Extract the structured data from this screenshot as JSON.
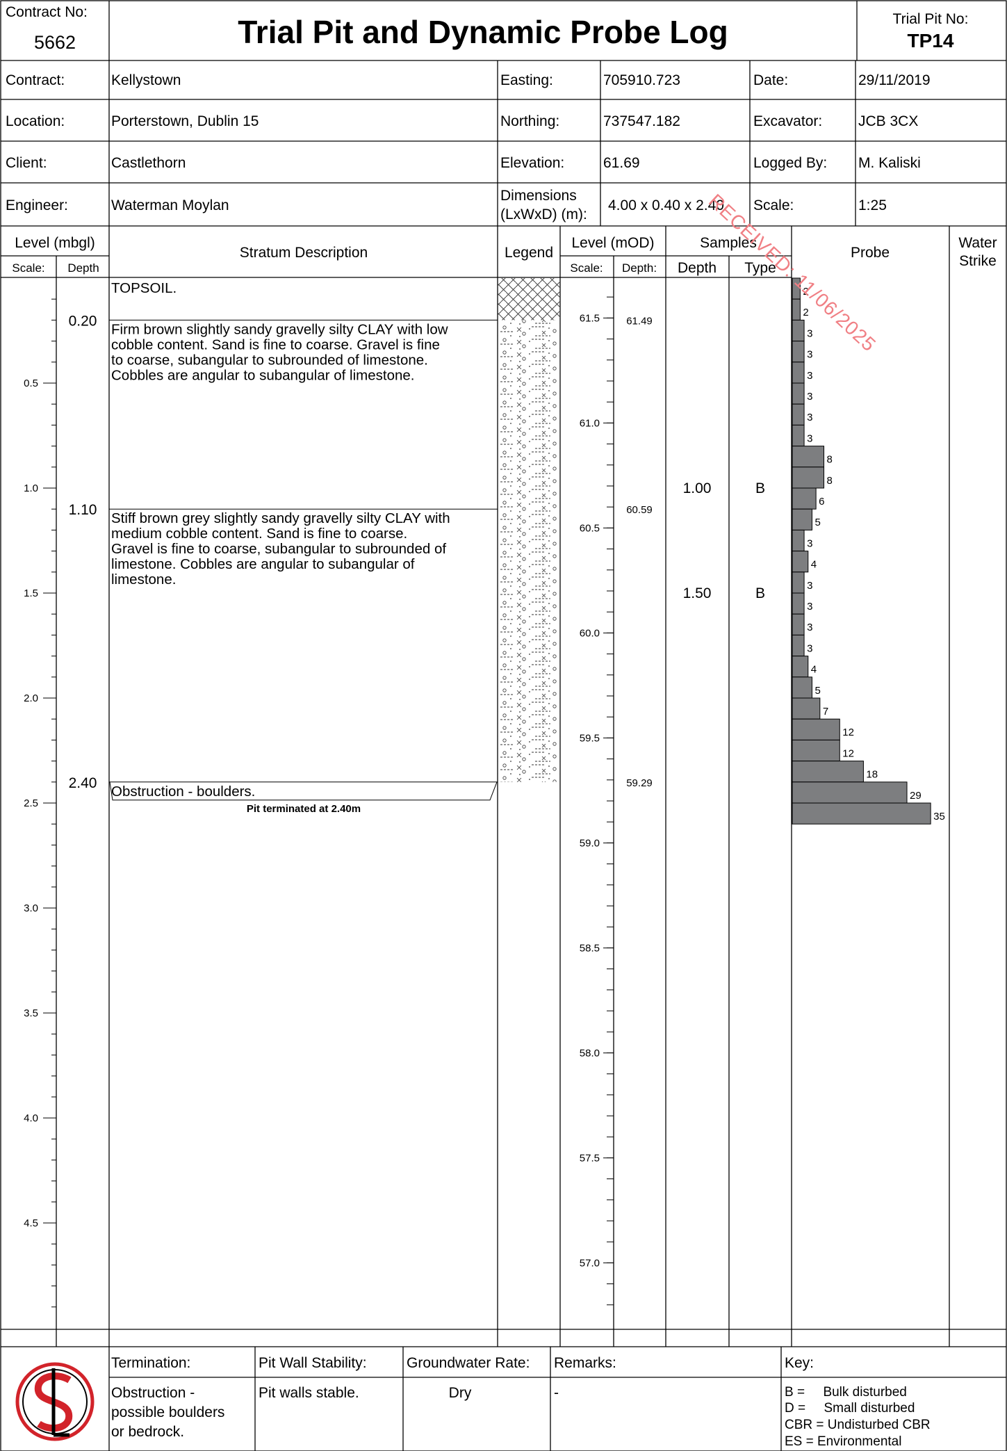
{
  "header": {
    "contract_no_label": "Contract No:",
    "contract_no": "5662",
    "title": "Trial Pit and Dynamic Probe Log",
    "pit_no_label": "Trial Pit No:",
    "pit_no": "TP14"
  },
  "info": {
    "contract_label": "Contract:",
    "contract": "Kellystown",
    "location_label": "Location:",
    "location": "Porterstown, Dublin 15",
    "client_label": "Client:",
    "client": "Castlethorn",
    "engineer_label": "Engineer:",
    "engineer": "Waterman Moylan",
    "easting_label": "Easting:",
    "easting": "705910.723",
    "northing_label": "Northing:",
    "northing": "737547.182",
    "elevation_label": "Elevation:",
    "elevation": "61.69",
    "dimensions_label_1": "Dimensions",
    "dimensions_label_2": "(LxWxD) (m):",
    "dimensions": "4.00  x  0.40  x  2.40",
    "date_label": "Date:",
    "date": "29/11/2019",
    "excavator_label": "Excavator:",
    "excavator": "JCB 3CX",
    "logged_by_label": "Logged By:",
    "logged_by": "M. Kaliski",
    "scale_label": "Scale:",
    "scale": "1:25"
  },
  "columns": {
    "level_mbgl": "Level (mbgl)",
    "scale": "Scale:",
    "depth": "Depth",
    "stratum": "Stratum Description",
    "legend": "Legend",
    "level_mod": "Level (mOD)",
    "scale2": "Scale:",
    "depth2": "Depth:",
    "samples": "Samples",
    "sample_depth": "Depth",
    "sample_type": "Type",
    "probe": "Probe",
    "water_1": "Water",
    "water_2": "Strike"
  },
  "strata": [
    {
      "top": 0,
      "base": 0.2,
      "depth_label": "",
      "level": "",
      "lines": [
        "TOPSOIL."
      ],
      "pattern": "topsoil"
    },
    {
      "top": 0.2,
      "base": 1.1,
      "depth_label": "0.20",
      "level": "61.49",
      "lines": [
        "Firm brown slightly sandy gravelly silty CLAY with low",
        "cobble content. Sand is fine to coarse. Gravel is fine",
        "to coarse, subangular to subrounded of limestone.",
        "Cobbles are angular to subangular of limestone."
      ],
      "pattern": "clay"
    },
    {
      "top": 1.1,
      "base": 2.4,
      "depth_label": "1.10",
      "level": "60.59",
      "lines": [
        "Stiff brown grey slightly sandy gravelly silty CLAY with",
        "medium cobble content. Sand is fine to coarse.",
        "Gravel is fine to coarse, subangular to subrounded of",
        "limestone. Cobbles are angular to subangular of",
        "limestone."
      ],
      "pattern": "clay"
    },
    {
      "top": 2.4,
      "base": 2.4,
      "depth_label": "2.40",
      "level": "59.29",
      "lines": [
        "Obstruction - boulders."
      ],
      "pattern": "none"
    }
  ],
  "termination_note": "Pit terminated at 2.40m",
  "depth_scale_labels": [
    "0.5",
    "1.0",
    "1.5",
    "2.0",
    "2.5",
    "3.0",
    "3.5",
    "4.0",
    "4.5"
  ],
  "level_scale_labels": [
    "61.5",
    "61.0",
    "60.5",
    "60.0",
    "59.5",
    "59.0",
    "58.5",
    "58.0",
    "57.5",
    "57.0"
  ],
  "samples": [
    {
      "depth": "1.00",
      "type": "B"
    },
    {
      "depth": "1.50",
      "type": "B"
    }
  ],
  "chart_data": {
    "type": "bar",
    "title": "Probe",
    "orientation": "horizontal",
    "depth_increment_m": 0.1,
    "top_label": "0",
    "values": [
      2,
      2,
      3,
      3,
      3,
      3,
      3,
      3,
      8,
      8,
      6,
      5,
      3,
      4,
      3,
      3,
      3,
      3,
      4,
      5,
      7,
      12,
      12,
      18,
      29,
      35
    ]
  },
  "footer": {
    "termination_label": "Termination:",
    "termination_lines": [
      "Obstruction -",
      "possible boulders",
      "or bedrock."
    ],
    "stability_label": "Pit Wall Stability:",
    "stability": "Pit walls stable.",
    "groundwater_label": "Groundwater Rate:",
    "groundwater": "Dry",
    "remarks_label": "Remarks:",
    "remarks": "-",
    "key_label": "Key:",
    "key": [
      "B =     Bulk disturbed",
      "D =     Small disturbed",
      "CBR = Undisturbed CBR",
      "ES = Environmental"
    ]
  },
  "stamp": "RECEIVED: 11/06/2025",
  "colors": {
    "probe_bar": "#7d7e80",
    "stamp": "#f07f84",
    "logo": "#d2232a"
  }
}
